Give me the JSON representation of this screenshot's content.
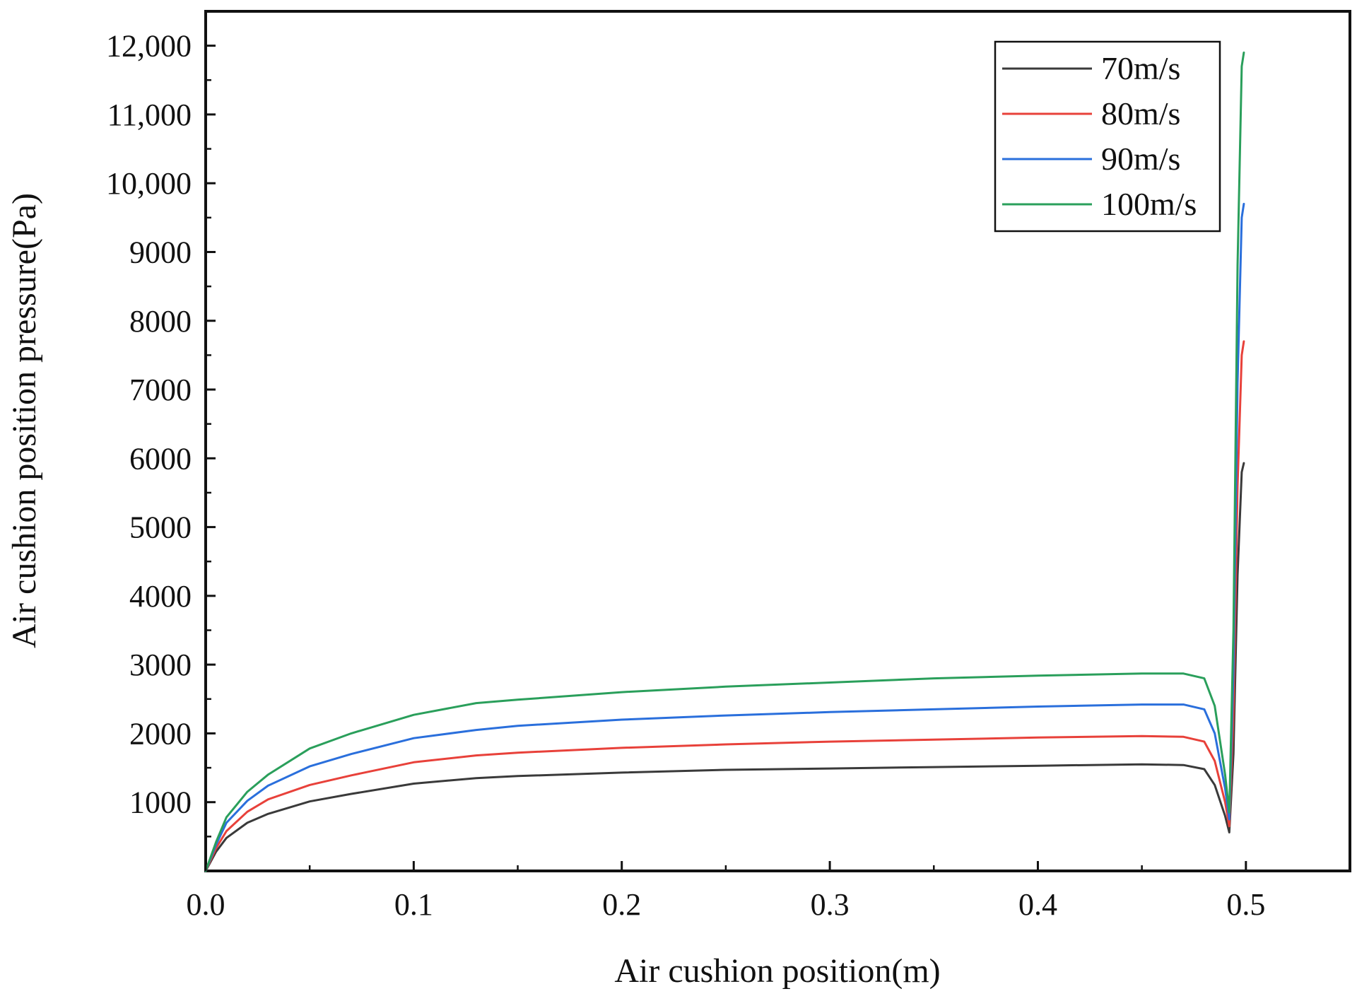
{
  "chart_data": {
    "type": "line",
    "title": "",
    "xlabel": "Air cushion position(m)",
    "ylabel": "Air cushion position pressure(Pa)",
    "xlim": [
      0,
      0.55
    ],
    "ylim": [
      0,
      12500
    ],
    "grid": false,
    "legend_position": "top-right",
    "x_ticks": [
      {
        "value": 0.0,
        "label": "0.0"
      },
      {
        "value": 0.1,
        "label": "0.1"
      },
      {
        "value": 0.2,
        "label": "0.2"
      },
      {
        "value": 0.3,
        "label": "0.3"
      },
      {
        "value": 0.4,
        "label": "0.4"
      },
      {
        "value": 0.5,
        "label": "0.5"
      }
    ],
    "y_ticks": [
      {
        "value": 1000,
        "label": "1000"
      },
      {
        "value": 2000,
        "label": "2000"
      },
      {
        "value": 3000,
        "label": "3000"
      },
      {
        "value": 4000,
        "label": "4000"
      },
      {
        "value": 5000,
        "label": "5000"
      },
      {
        "value": 6000,
        "label": "6000"
      },
      {
        "value": 7000,
        "label": "7000"
      },
      {
        "value": 8000,
        "label": "8000"
      },
      {
        "value": 9000,
        "label": "9000"
      },
      {
        "value": 10000,
        "label": "10,000"
      },
      {
        "value": 11000,
        "label": "11,000"
      },
      {
        "value": 12000,
        "label": "12,000"
      }
    ],
    "series": [
      {
        "name": "70m/s",
        "color": "#3a3a3a",
        "x": [
          0,
          0.005,
          0.01,
          0.02,
          0.03,
          0.05,
          0.07,
          0.1,
          0.13,
          0.15,
          0.2,
          0.25,
          0.3,
          0.35,
          0.4,
          0.45,
          0.47,
          0.48,
          0.485,
          0.49,
          0.492,
          0.494,
          0.496,
          0.498,
          0.499
        ],
        "y": [
          0,
          280,
          480,
          700,
          830,
          1010,
          1120,
          1270,
          1350,
          1380,
          1430,
          1470,
          1490,
          1510,
          1530,
          1550,
          1540,
          1480,
          1250,
          800,
          560,
          1700,
          4300,
          5800,
          5930
        ]
      },
      {
        "name": "80m/s",
        "color": "#e8413a",
        "x": [
          0,
          0.005,
          0.01,
          0.02,
          0.03,
          0.05,
          0.07,
          0.1,
          0.13,
          0.15,
          0.2,
          0.25,
          0.3,
          0.35,
          0.4,
          0.45,
          0.47,
          0.48,
          0.485,
          0.49,
          0.492,
          0.494,
          0.496,
          0.498,
          0.499
        ],
        "y": [
          0,
          330,
          580,
          860,
          1040,
          1250,
          1390,
          1580,
          1680,
          1720,
          1790,
          1840,
          1880,
          1910,
          1940,
          1960,
          1950,
          1880,
          1600,
          1000,
          650,
          2300,
          5600,
          7500,
          7700
        ]
      },
      {
        "name": "90m/s",
        "color": "#2a6fdc",
        "x": [
          0,
          0.005,
          0.01,
          0.02,
          0.03,
          0.05,
          0.07,
          0.1,
          0.13,
          0.15,
          0.2,
          0.25,
          0.3,
          0.35,
          0.4,
          0.45,
          0.47,
          0.48,
          0.485,
          0.49,
          0.492,
          0.494,
          0.496,
          0.498,
          0.499
        ],
        "y": [
          0,
          380,
          700,
          1020,
          1240,
          1520,
          1700,
          1930,
          2050,
          2110,
          2200,
          2260,
          2310,
          2350,
          2390,
          2420,
          2420,
          2350,
          2000,
          1200,
          750,
          2900,
          7100,
          9500,
          9700
        ]
      },
      {
        "name": "100m/s",
        "color": "#2a9f5b",
        "x": [
          0,
          0.005,
          0.01,
          0.02,
          0.03,
          0.05,
          0.07,
          0.1,
          0.13,
          0.15,
          0.2,
          0.25,
          0.3,
          0.35,
          0.4,
          0.45,
          0.47,
          0.48,
          0.485,
          0.49,
          0.492,
          0.494,
          0.496,
          0.498,
          0.499
        ],
        "y": [
          0,
          420,
          780,
          1150,
          1400,
          1780,
          2000,
          2270,
          2440,
          2490,
          2600,
          2680,
          2740,
          2800,
          2840,
          2870,
          2870,
          2800,
          2400,
          1400,
          850,
          3500,
          8800,
          11700,
          11900
        ]
      }
    ]
  }
}
